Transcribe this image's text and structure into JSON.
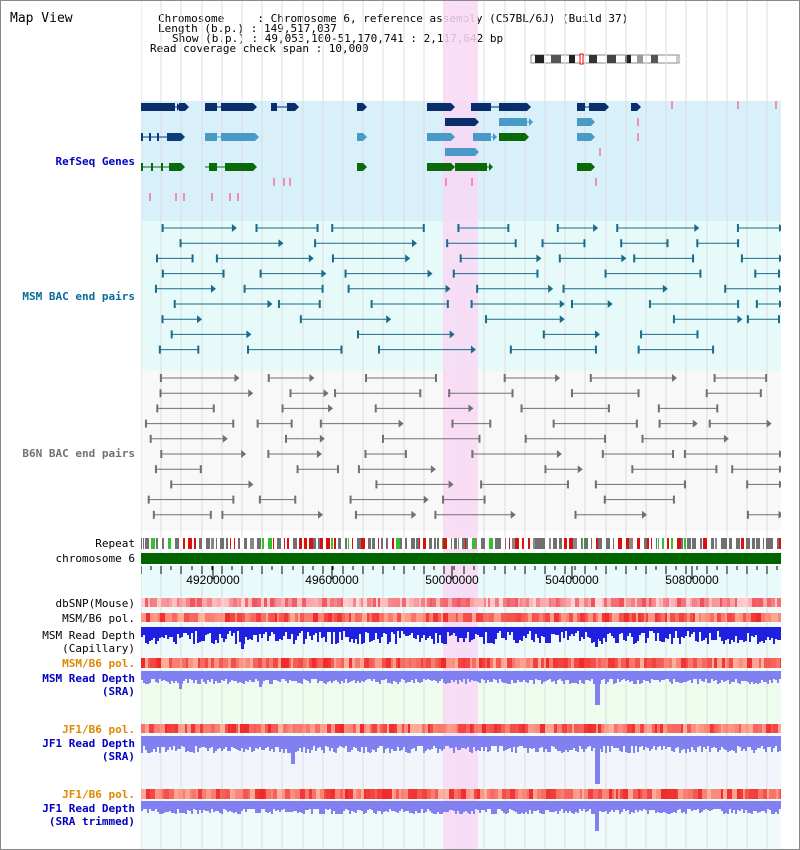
{
  "title": "Map View",
  "info": {
    "lines": [
      "Chromosome     : Chromosome 6, reference assembly (C57BL/6J) (Build 37)",
      "Length (b.p.) : 149,517,037",
      "Show (b.p.) : 49,053,100-51,170,741 : 2,117,642 bp",
      "Read coverage check span : 10,000"
    ]
  },
  "tracks": {
    "refseq": "RefSeq Genes",
    "msm_bac": "MSM BAC end pairs",
    "b6n_bac": "B6N BAC end pairs",
    "repeat": "Repeat",
    "chromosome": "chromosome 6",
    "dbsnp": "dbSNP(Mouse)",
    "msm_b6_pol_1": "MSM/B6 pol.",
    "msm_read_cap_1": "MSM Read Depth",
    "msm_read_cap_2": "(Capillary)",
    "msm_b6_pol_2": "MSM/B6 pol.",
    "msm_read_sra_1": "MSM Read Depth",
    "msm_read_sra_2": "(SRA)",
    "jf1_b6_pol_1": "JF1/B6 pol.",
    "jf1_read_sra_1": "JF1 Read Depth",
    "jf1_read_sra_2": "(SRA)",
    "jf1_b6_pol_2": "JF1/B6 pol.",
    "jf1_read_trim_1": "JF1 Read Depth",
    "jf1_read_trim_2": "(SRA trimmed)"
  },
  "axis": {
    "ticks": [
      "49200000",
      "49600000",
      "50000000",
      "50400000",
      "50800000"
    ]
  },
  "colors": {
    "refseq_bg": "#d8f0fa",
    "msm_bg": "#e6fafa",
    "b6n_bg": "#f8f8f8",
    "highlight": "#f8d8f4",
    "navy": "#0a2d6b",
    "steel": "#4a9ac8",
    "green": "#0a6a0a",
    "pink": "#f090b0",
    "teal": "#1a6a8a",
    "grey": "#707070",
    "chrom": "#006400",
    "depth_dark": "#2020e0",
    "depth_light": "#8080f0"
  }
}
